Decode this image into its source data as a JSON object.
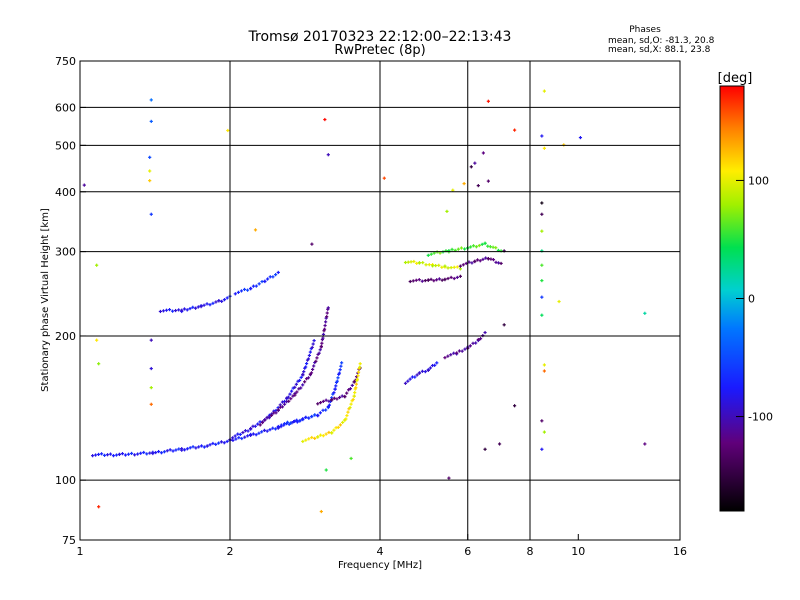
{
  "chart_data": {
    "type": "scatter",
    "title": "Tromsø 20170323 22:12:00–22:13:43",
    "subtitle": "RwPretec (8p)",
    "xlabel": "Frequency [MHz]",
    "ylabel": "Stationary phase Virtual Height [km]",
    "xscale": "log",
    "yscale": "log",
    "xlim": [
      1,
      16
    ],
    "ylim": [
      75,
      750
    ],
    "x_ticks": [
      1,
      2,
      4,
      6,
      8,
      10,
      16
    ],
    "y_ticks": [
      75,
      100,
      200,
      300,
      400,
      500,
      600,
      750
    ],
    "x_grid": [
      2,
      4,
      6,
      8
    ],
    "y_grid": [
      100,
      200,
      300,
      400,
      500,
      600
    ],
    "grid": true,
    "stats": {
      "header": "Phases",
      "line_o": "mean, sd,O: -81.3, 20.8",
      "line_x": "mean, sd,X:  88.1, 23.8"
    },
    "colorbar": {
      "label": "[deg]",
      "min": -180,
      "max": 180,
      "ticks": [
        100,
        0,
        -100
      ],
      "colormap": "rainbow"
    },
    "traces": [
      {
        "name": "",
        "x": [
          1.06,
          1.2,
          1.4,
          1.6,
          1.8,
          2.0,
          2.2,
          2.5,
          2.8,
          3.0
        ],
        "y": [
          113,
          113,
          114,
          116,
          118,
          121,
          124,
          129,
          134,
          137
        ],
        "phase": -75
      },
      {
        "name": "",
        "x": [
          2.0,
          2.2,
          2.4,
          2.6,
          2.8,
          2.95
        ],
        "y": [
          122,
          128,
          136,
          148,
          166,
          195
        ],
        "phase": -85
      },
      {
        "name": "",
        "x": [
          2.3,
          2.5,
          2.7,
          2.9,
          3.05,
          3.15
        ],
        "y": [
          131,
          140,
          151,
          166,
          190,
          230
        ],
        "phase": -115
      },
      {
        "name": "",
        "x": [
          2.5,
          2.8,
          3.0,
          3.15,
          3.25,
          3.35
        ],
        "y": [
          130,
          134,
          137,
          142,
          155,
          175
        ],
        "phase": -65
      },
      {
        "name": "",
        "x": [
          3.0,
          3.2,
          3.4,
          3.55,
          3.65
        ],
        "y": [
          145,
          147,
          150,
          160,
          172
        ],
        "phase": -120
      },
      {
        "name": "",
        "x": [
          2.8,
          3.0,
          3.2,
          3.4,
          3.55,
          3.65
        ],
        "y": [
          121,
          123,
          126,
          133,
          150,
          175
        ],
        "phase": 110
      },
      {
        "name": "",
        "x": [
          1.45,
          1.6,
          1.75,
          1.9,
          2.0
        ],
        "y": [
          226,
          226,
          231,
          236,
          241
        ],
        "phase": -80
      },
      {
        "name": "",
        "x": [
          2.05,
          2.2,
          2.35,
          2.5
        ],
        "y": [
          246,
          251,
          261,
          271
        ],
        "phase": -65
      },
      {
        "name": "",
        "x": [
          4.5,
          4.8,
          5.0,
          5.2
        ],
        "y": [
          160,
          167,
          170,
          176
        ],
        "phase": -85
      },
      {
        "name": "",
        "x": [
          5.4,
          5.7,
          6.0,
          6.3,
          6.5
        ],
        "y": [
          181,
          184,
          189,
          196,
          203
        ],
        "phase": -110
      },
      {
        "name": "",
        "x": [
          4.5,
          4.8,
          5.1,
          5.4,
          5.8
        ],
        "y": [
          286,
          284,
          281,
          279,
          277
        ],
        "phase": 95
      },
      {
        "name": "",
        "x": [
          5.8,
          6.2,
          6.6,
          7.0
        ],
        "y": [
          281,
          286,
          291,
          283
        ],
        "phase": -120
      },
      {
        "name": "",
        "x": [
          5.0,
          5.5,
          6.0,
          6.5,
          7.0
        ],
        "y": [
          296,
          301,
          306,
          311,
          301
        ],
        "phase": 60
      },
      {
        "name": "",
        "x": [
          4.6,
          5.0,
          5.4,
          5.8
        ],
        "y": [
          261,
          261,
          263,
          266
        ],
        "phase": -125
      }
    ],
    "scatter": [
      {
        "x": 1.02,
        "y": 413,
        "phase": -110
      },
      {
        "x": 1.08,
        "y": 281,
        "phase": 80
      },
      {
        "x": 1.08,
        "y": 196,
        "phase": 110
      },
      {
        "x": 1.09,
        "y": 175,
        "phase": 75
      },
      {
        "x": 1.09,
        "y": 88,
        "phase": 170
      },
      {
        "x": 1.39,
        "y": 622,
        "phase": -30
      },
      {
        "x": 1.39,
        "y": 561,
        "phase": -40
      },
      {
        "x": 1.38,
        "y": 472,
        "phase": -50
      },
      {
        "x": 1.38,
        "y": 442,
        "phase": 100
      },
      {
        "x": 1.38,
        "y": 422,
        "phase": 120
      },
      {
        "x": 1.39,
        "y": 359,
        "phase": -60
      },
      {
        "x": 1.39,
        "y": 196,
        "phase": -100
      },
      {
        "x": 1.39,
        "y": 171,
        "phase": -90
      },
      {
        "x": 1.39,
        "y": 156,
        "phase": 80
      },
      {
        "x": 1.39,
        "y": 144,
        "phase": 150
      },
      {
        "x": 1.98,
        "y": 537,
        "phase": 110
      },
      {
        "x": 2.25,
        "y": 333,
        "phase": 130
      },
      {
        "x": 2.92,
        "y": 311,
        "phase": -130
      },
      {
        "x": 3.1,
        "y": 566,
        "phase": 178
      },
      {
        "x": 3.15,
        "y": 478,
        "phase": -100
      },
      {
        "x": 3.12,
        "y": 105,
        "phase": 50
      },
      {
        "x": 3.05,
        "y": 86,
        "phase": 130
      },
      {
        "x": 3.5,
        "y": 111,
        "phase": 60
      },
      {
        "x": 4.08,
        "y": 427,
        "phase": 160
      },
      {
        "x": 5.45,
        "y": 364,
        "phase": 80
      },
      {
        "x": 5.6,
        "y": 403,
        "phase": 100
      },
      {
        "x": 5.9,
        "y": 416,
        "phase": 130
      },
      {
        "x": 6.1,
        "y": 451,
        "phase": -150
      },
      {
        "x": 6.2,
        "y": 459,
        "phase": -110
      },
      {
        "x": 6.3,
        "y": 412,
        "phase": -140
      },
      {
        "x": 6.45,
        "y": 482,
        "phase": -120
      },
      {
        "x": 6.6,
        "y": 618,
        "phase": 175
      },
      {
        "x": 6.6,
        "y": 421,
        "phase": -130
      },
      {
        "x": 7.45,
        "y": 538,
        "phase": 170
      },
      {
        "x": 7.1,
        "y": 301,
        "phase": -140
      },
      {
        "x": 7.1,
        "y": 211,
        "phase": -150
      },
      {
        "x": 7.45,
        "y": 143,
        "phase": -150
      },
      {
        "x": 6.95,
        "y": 119,
        "phase": -140
      },
      {
        "x": 6.5,
        "y": 116,
        "phase": -150
      },
      {
        "x": 5.5,
        "y": 101,
        "phase": -130
      },
      {
        "x": 8.55,
        "y": 649,
        "phase": 100
      },
      {
        "x": 8.45,
        "y": 523,
        "phase": -80
      },
      {
        "x": 8.55,
        "y": 493,
        "phase": 110
      },
      {
        "x": 9.35,
        "y": 501,
        "phase": 120
      },
      {
        "x": 10.1,
        "y": 519,
        "phase": -80
      },
      {
        "x": 8.45,
        "y": 379,
        "phase": -170
      },
      {
        "x": 8.45,
        "y": 359,
        "phase": -140
      },
      {
        "x": 8.45,
        "y": 331,
        "phase": 80
      },
      {
        "x": 8.45,
        "y": 301,
        "phase": 30
      },
      {
        "x": 8.45,
        "y": 281,
        "phase": 60
      },
      {
        "x": 8.45,
        "y": 261,
        "phase": 50
      },
      {
        "x": 8.45,
        "y": 241,
        "phase": -60
      },
      {
        "x": 8.45,
        "y": 221,
        "phase": 40
      },
      {
        "x": 8.55,
        "y": 169,
        "phase": 150
      },
      {
        "x": 8.55,
        "y": 174,
        "phase": 100
      },
      {
        "x": 8.45,
        "y": 133,
        "phase": -130
      },
      {
        "x": 8.55,
        "y": 126,
        "phase": 80
      },
      {
        "x": 8.45,
        "y": 116,
        "phase": -80
      },
      {
        "x": 9.15,
        "y": 236,
        "phase": 100
      },
      {
        "x": 13.6,
        "y": 223,
        "phase": 20
      },
      {
        "x": 13.6,
        "y": 119,
        "phase": -120
      }
    ]
  }
}
